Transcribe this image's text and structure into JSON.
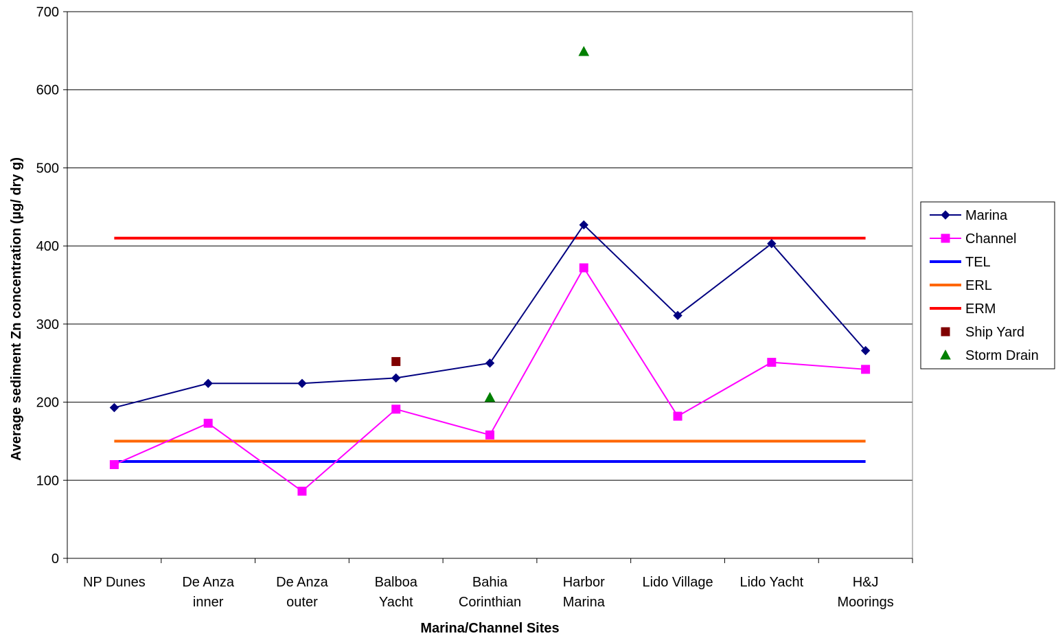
{
  "chart_data": {
    "type": "line",
    "xlabel": "Marina/Channel Sites",
    "ylabel": "Average sediment Zn concentration (µg/ dry g)",
    "ylim": [
      0,
      700
    ],
    "yticks": [
      0,
      100,
      200,
      300,
      400,
      500,
      600,
      700
    ],
    "grid": true,
    "legend_position": "right",
    "categories": [
      [
        "NP Dunes"
      ],
      [
        "De Anza",
        "inner"
      ],
      [
        "De Anza",
        "outer"
      ],
      [
        "Balboa",
        "Yacht"
      ],
      [
        "Bahia",
        "Corinthian"
      ],
      [
        "Harbor",
        "Marina"
      ],
      [
        "Lido Village"
      ],
      [
        "Lido Yacht"
      ],
      [
        "H&J",
        "Moorings"
      ]
    ],
    "series": [
      {
        "name": "Marina",
        "kind": "line",
        "marker": "diamond",
        "color": "#000080",
        "values": [
          193,
          224,
          224,
          231,
          250,
          427,
          311,
          403,
          266
        ]
      },
      {
        "name": "Channel",
        "kind": "line",
        "marker": "square",
        "color": "#FF00FF",
        "values": [
          120,
          173,
          86,
          191,
          158,
          372,
          182,
          251,
          242
        ]
      },
      {
        "name": "TEL",
        "kind": "line",
        "marker": "none",
        "color": "#0000FF",
        "values": [
          124,
          124,
          124,
          124,
          124,
          124,
          124,
          124,
          124
        ]
      },
      {
        "name": "ERL",
        "kind": "line",
        "marker": "none",
        "color": "#FF6600",
        "values": [
          150,
          150,
          150,
          150,
          150,
          150,
          150,
          150,
          150
        ]
      },
      {
        "name": "ERM",
        "kind": "line",
        "marker": "none",
        "color": "#FF0000",
        "values": [
          410,
          410,
          410,
          410,
          410,
          410,
          410,
          410,
          410
        ]
      },
      {
        "name": "Ship Yard",
        "kind": "scatter",
        "marker": "square",
        "color": "#800000",
        "values": [
          null,
          null,
          null,
          252,
          null,
          null,
          null,
          null,
          null
        ]
      },
      {
        "name": "Storm Drain",
        "kind": "scatter",
        "marker": "triangle",
        "color": "#008000",
        "values": [
          null,
          null,
          null,
          null,
          206,
          649,
          null,
          null,
          null
        ]
      }
    ]
  }
}
